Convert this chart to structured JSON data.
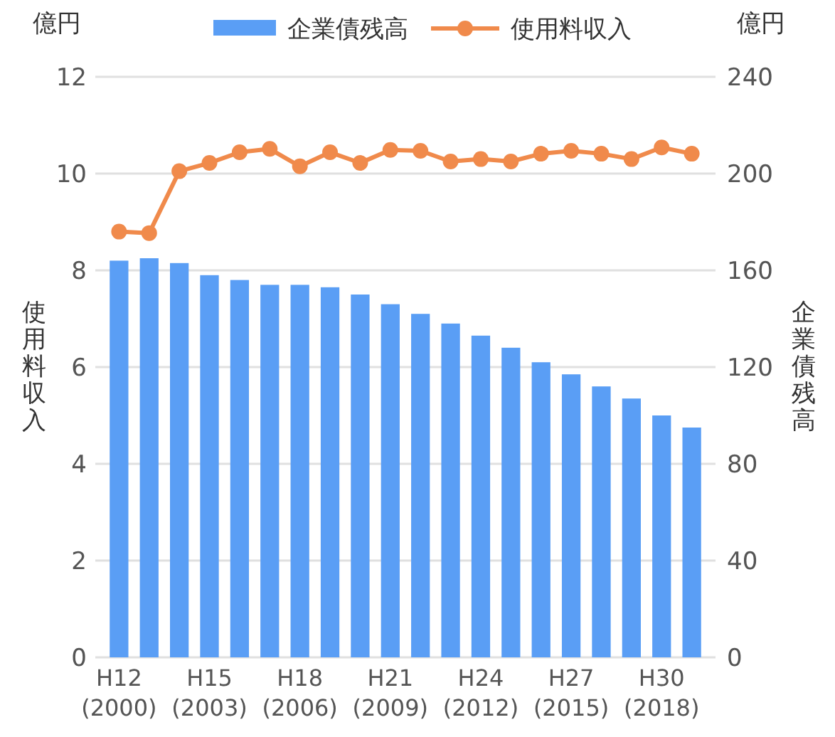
{
  "chart_data": {
    "type": "bar",
    "ylabel": "使用料収入",
    "y2label": "企業債残高",
    "annotations": [
      "億円",
      "億円"
    ],
    "categories": [
      "H12 (2000)",
      null,
      null,
      "H15 (2003)",
      null,
      null,
      "H18 (2006)",
      null,
      null,
      "H21 (2009)",
      null,
      null,
      "H24 (2012)",
      null,
      null,
      "H27 (2015)",
      null,
      null,
      "H30 (2018)",
      null
    ],
    "series": [
      {
        "name": "企業債残高",
        "axis": "y2",
        "color": "#5a9ef5",
        "values": [
          164,
          165,
          163,
          158,
          156,
          154,
          154,
          153,
          150,
          146,
          142,
          138,
          133,
          128,
          122,
          117,
          112,
          107,
          100,
          95
        ]
      },
      {
        "name": "使用料収入",
        "type": "line",
        "axis": "y",
        "color": "#f08a4b",
        "marker": "circle",
        "values": [
          8.8,
          8.77,
          10.05,
          10.22,
          10.44,
          10.51,
          10.15,
          10.44,
          10.22,
          10.49,
          10.47,
          10.25,
          10.3,
          10.25,
          10.41,
          10.47,
          10.41,
          10.3,
          10.54,
          10.41
        ]
      }
    ],
    "ylim": [
      0,
      12
    ],
    "yticks": [
      0,
      2,
      4,
      6,
      8,
      10,
      12
    ],
    "y2lim": [
      0,
      240
    ],
    "y2ticks": [
      0,
      40,
      80,
      120,
      160,
      200,
      240
    ],
    "grid": "y",
    "legend": "top"
  }
}
